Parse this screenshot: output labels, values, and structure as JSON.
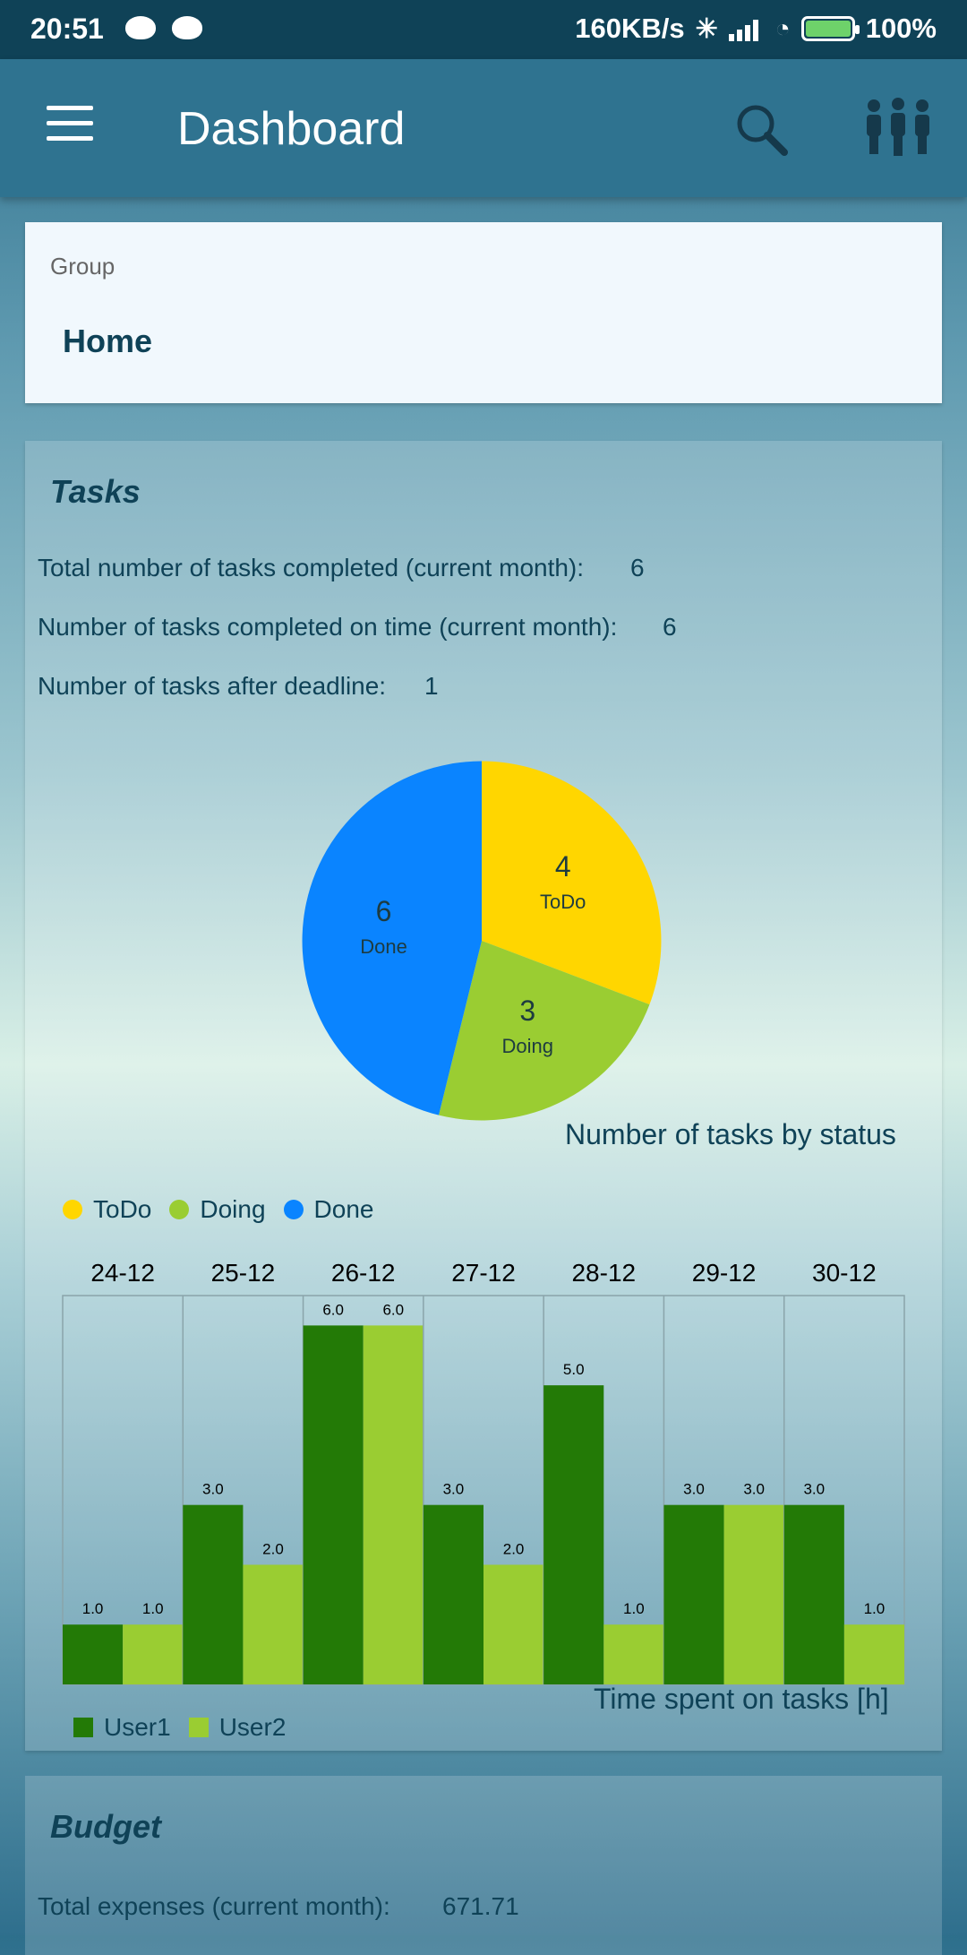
{
  "status_bar": {
    "time": "20:51",
    "speed": "160KB/s",
    "battery": "100%"
  },
  "app_bar": {
    "title": "Dashboard"
  },
  "group": {
    "label": "Group",
    "value": "Home"
  },
  "tasks": {
    "title": "Tasks",
    "stats": [
      {
        "label": "Total number of tasks completed (current month):",
        "value": "6"
      },
      {
        "label": "Number of tasks completed on time (current month):",
        "value": "6"
      },
      {
        "label": "Number of tasks after deadline:",
        "value": "1"
      }
    ],
    "pie_caption": "Number of tasks by status",
    "bar_caption": "Time spent on tasks [h]"
  },
  "budget": {
    "title": "Budget",
    "stat_label": "Total expenses (current month):",
    "stat_value": "671.71"
  },
  "colors": {
    "todo": "#ffd600",
    "doing": "#9acd32",
    "done": "#0a84ff",
    "user1": "#237a06",
    "user2": "#9acd32"
  },
  "chart_data": [
    {
      "type": "pie",
      "labels": [
        "ToDo",
        "Doing",
        "Done"
      ],
      "values": [
        4,
        3,
        6
      ],
      "title": "Number of tasks by status",
      "legend": [
        "ToDo",
        "Doing",
        "Done"
      ],
      "legend_position": "bottom-left"
    },
    {
      "type": "bar",
      "categories": [
        "24-12",
        "25-12",
        "26-12",
        "27-12",
        "28-12",
        "29-12",
        "30-12"
      ],
      "series": [
        {
          "name": "User1",
          "values": [
            1.0,
            3.0,
            6.0,
            3.0,
            5.0,
            3.0,
            3.0
          ]
        },
        {
          "name": "User2",
          "values": [
            1.0,
            2.0,
            6.0,
            2.0,
            1.0,
            3.0,
            1.0
          ]
        }
      ],
      "title": "Time spent on tasks [h]",
      "ylim": [
        0,
        6.5
      ],
      "legend_position": "bottom-left",
      "category_labels_position": "top"
    }
  ]
}
